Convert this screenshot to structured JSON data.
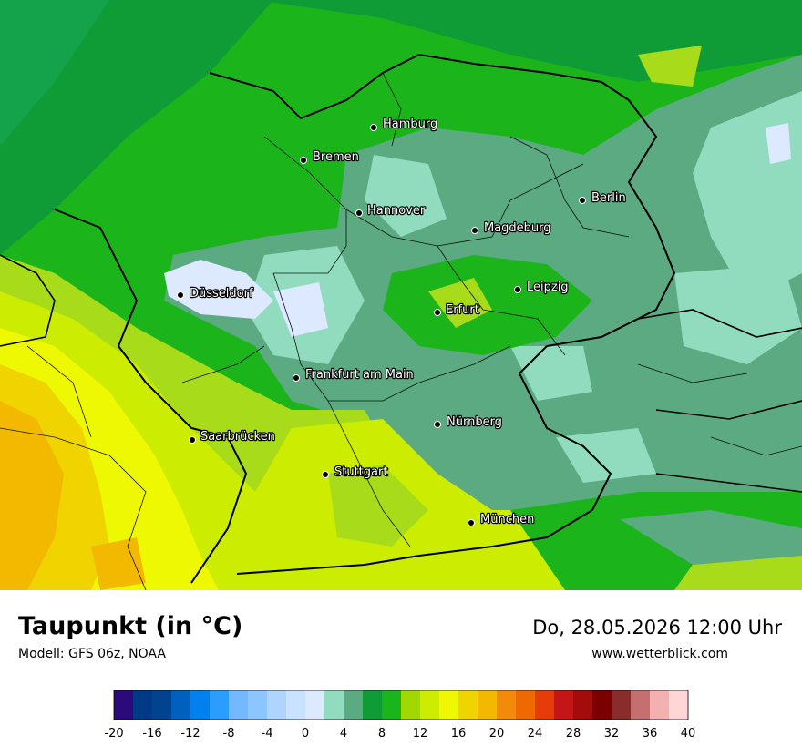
{
  "title": "Taupunkt (in °C)",
  "model": "Modell: GFS 06z, NOAA",
  "datetime": "Do, 28.05.2026 12:00 Uhr",
  "website": "www.wetterblick.com",
  "cities": [
    {
      "name": "Hamburg"
    },
    {
      "name": "Bremen"
    },
    {
      "name": "Berlin"
    },
    {
      "name": "Hannover"
    },
    {
      "name": "Magdeburg"
    },
    {
      "name": "Düsseldorf"
    },
    {
      "name": "Leipzig"
    },
    {
      "name": "Erfurt"
    },
    {
      "name": "Frankfurt am Main"
    },
    {
      "name": "Nürnberg"
    },
    {
      "name": "Saarbrücken"
    },
    {
      "name": "Stuttgart"
    },
    {
      "name": "München"
    }
  ],
  "scale": {
    "ticks": [
      "-20",
      "-16",
      "-12",
      "-8",
      "-4",
      "0",
      "4",
      "8",
      "12",
      "16",
      "20",
      "24",
      "28",
      "32",
      "36",
      "40"
    ],
    "colors": [
      "#2c0a7c",
      "#003a87",
      "#00448f",
      "#0060c0",
      "#0082ee",
      "#2a9dff",
      "#74b9ff",
      "#8cc5ff",
      "#aed4ff",
      "#c8e2ff",
      "#dce9ff",
      "#91dcbe",
      "#5caa82",
      "#0f9b35",
      "#1bb51b",
      "#a0d800",
      "#ccec00",
      "#eef800",
      "#f0d400",
      "#f3b800",
      "#f38a0a",
      "#ee6a00",
      "#e63c0c",
      "#c41616",
      "#a40b0b",
      "#7d0000",
      "#8b2c2c",
      "#c47070",
      "#f2b0b0",
      "#ffd6d6"
    ]
  }
}
